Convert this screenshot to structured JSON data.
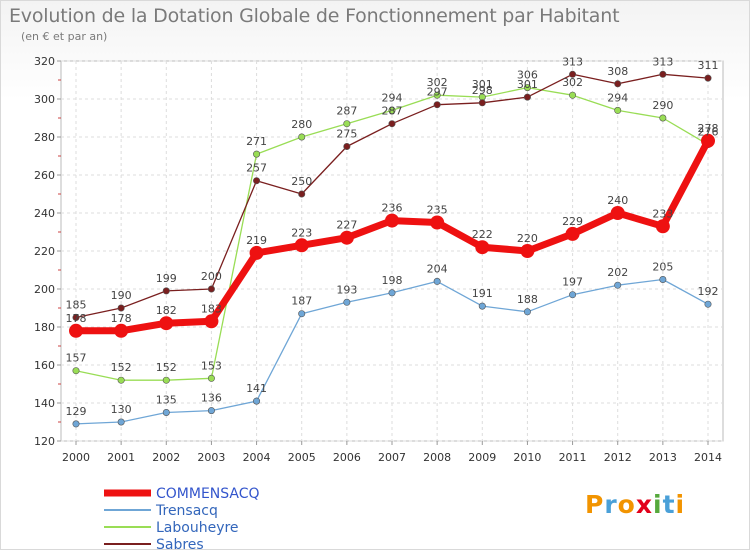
{
  "title": "Evolution de la Dotation Globale de Fonctionnement par Habitant",
  "subtitle": "(en € et par an)",
  "logo": {
    "text": "Proxiti",
    "colors": [
      "#f29400",
      "#4aa0d8",
      "#f29400",
      "#e2001a",
      "#56a93c",
      "#4aa0d8",
      "#f29400"
    ]
  },
  "chart_data": {
    "type": "line",
    "title": "Evolution de la Dotation Globale de Fonctionnement par Habitant",
    "subtitle": "(en € et par an)",
    "x": [
      "2000",
      "2001",
      "2002",
      "2003",
      "2004",
      "2005",
      "2006",
      "2007",
      "2008",
      "2009",
      "2010",
      "2011",
      "2012",
      "2013",
      "2014"
    ],
    "ylim": [
      120,
      320
    ],
    "yticks": [
      "120",
      "140",
      "160",
      "180",
      "200",
      "220",
      "240",
      "260",
      "280",
      "300",
      "320"
    ],
    "grid": true,
    "legend_position": "bottom-left",
    "series": [
      {
        "name": "COMMENSACQ",
        "color": "#ee1111",
        "thick": true,
        "values": [
          178,
          178,
          182,
          183,
          219,
          223,
          227,
          236,
          235,
          222,
          220,
          229,
          240,
          233,
          278
        ]
      },
      {
        "name": "Trensacq",
        "color": "#6fa6d6",
        "thick": false,
        "values": [
          129,
          130,
          135,
          136,
          141,
          187,
          193,
          198,
          204,
          191,
          188,
          197,
          202,
          205,
          192
        ]
      },
      {
        "name": "Labouheyre",
        "color": "#99dd55",
        "thick": false,
        "values": [
          157,
          152,
          152,
          153,
          271,
          280,
          287,
          294,
          302,
          301,
          306,
          302,
          294,
          290,
          276
        ]
      },
      {
        "name": "Sabres",
        "color": "#7a1f1f",
        "thick": false,
        "values": [
          185,
          190,
          199,
          200,
          257,
          250,
          275,
          287,
          297,
          298,
          301,
          313,
          308,
          313,
          311
        ]
      }
    ]
  }
}
